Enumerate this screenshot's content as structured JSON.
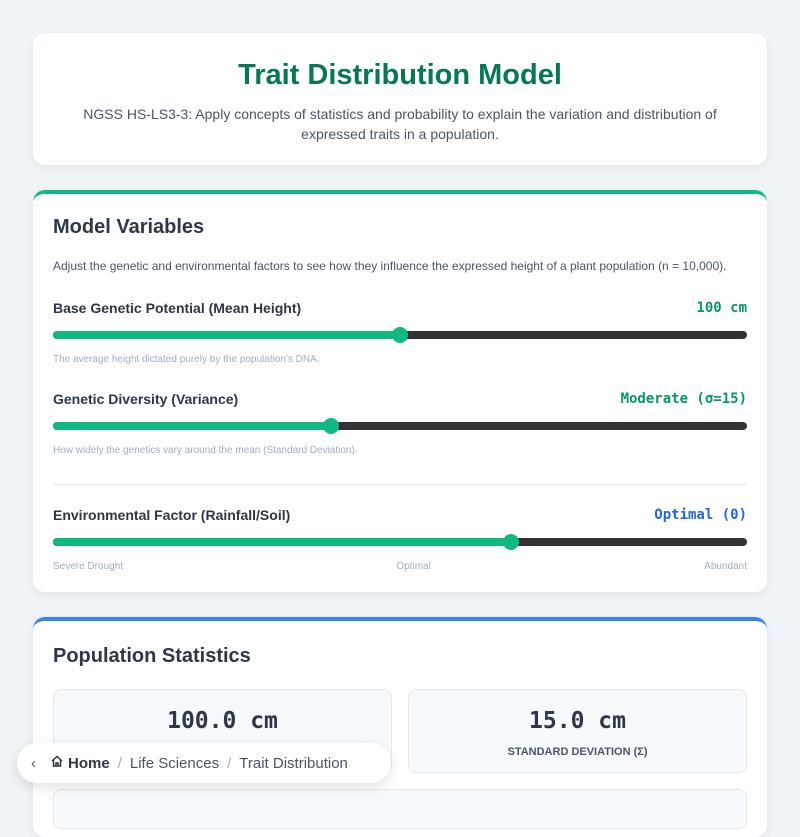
{
  "header": {
    "title": "Trait Distribution Model",
    "subtitle": "NGSS HS-LS3-3: Apply concepts of statistics and probability to explain the variation and distribution of expressed traits in a population."
  },
  "variables": {
    "title": "Model Variables",
    "description": "Adjust the genetic and environmental factors to see how they influence the expressed height of a plant population (n = 10,000).",
    "mean": {
      "label": "Base Genetic Potential (Mean Height)",
      "value": "100 cm",
      "help": "The average height dictated purely by the population's DNA.",
      "level_percent": 50
    },
    "diversity": {
      "label": "Genetic Diversity (Variance)",
      "value": "Moderate (σ=15)",
      "help": "How widely the genetics vary around the mean (Standard Deviation).",
      "level_percent": 40
    },
    "environment": {
      "label": "Environmental Factor (Rainfall/Soil)",
      "value": "Optimal (0)",
      "level_percent": 66,
      "ticks": [
        "Severe Drought",
        "Optimal",
        "Abundant"
      ]
    }
  },
  "stats": {
    "title": "Population Statistics",
    "mean_value": "100.0 cm",
    "sd_value": "15.0 cm",
    "sd_caption": "STANDARD DEVIATION (Σ)"
  },
  "breadcrumb": {
    "home": "Home",
    "section": "Life Sciences",
    "current": "Trait Distribution",
    "separator": "/"
  }
}
